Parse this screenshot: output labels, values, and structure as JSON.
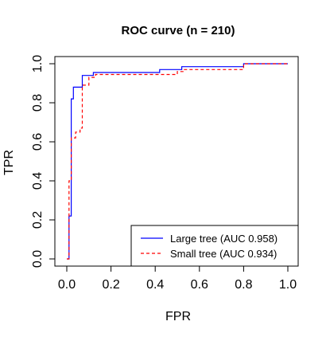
{
  "chart_data": {
    "type": "line",
    "title": "ROC curve (n = 210)",
    "xlabel": "FPR",
    "ylabel": "TPR",
    "xlim": [
      0,
      1
    ],
    "ylim": [
      0,
      1
    ],
    "x_ticks": [
      "0.0",
      "0.2",
      "0.4",
      "0.6",
      "0.8",
      "1.0"
    ],
    "y_ticks": [
      "0.0",
      "0.2",
      "0.4",
      "0.6",
      "0.8",
      "1.0"
    ],
    "grid": false,
    "legend_position": "bottom-right",
    "series": [
      {
        "name": "Large tree (AUC 0.958)",
        "color": "#0000ff",
        "line_style": "solid",
        "points": [
          [
            0.0,
            0.0
          ],
          [
            0.01,
            0.0
          ],
          [
            0.01,
            0.22
          ],
          [
            0.02,
            0.22
          ],
          [
            0.02,
            0.82
          ],
          [
            0.03,
            0.82
          ],
          [
            0.03,
            0.88
          ],
          [
            0.07,
            0.88
          ],
          [
            0.07,
            0.94
          ],
          [
            0.12,
            0.94
          ],
          [
            0.12,
            0.955
          ],
          [
            0.42,
            0.955
          ],
          [
            0.42,
            0.97
          ],
          [
            0.52,
            0.97
          ],
          [
            0.52,
            0.985
          ],
          [
            0.8,
            0.985
          ],
          [
            0.8,
            1.0
          ],
          [
            1.0,
            1.0
          ]
        ]
      },
      {
        "name": "Small tree (AUC 0.934)",
        "color": "#ff0000",
        "line_style": "dashed",
        "points": [
          [
            0.0,
            0.0
          ],
          [
            0.01,
            0.0
          ],
          [
            0.01,
            0.4
          ],
          [
            0.02,
            0.4
          ],
          [
            0.02,
            0.62
          ],
          [
            0.04,
            0.62
          ],
          [
            0.04,
            0.65
          ],
          [
            0.06,
            0.65
          ],
          [
            0.06,
            0.67
          ],
          [
            0.07,
            0.67
          ],
          [
            0.07,
            0.89
          ],
          [
            0.1,
            0.89
          ],
          [
            0.1,
            0.93
          ],
          [
            0.13,
            0.93
          ],
          [
            0.13,
            0.945
          ],
          [
            0.5,
            0.945
          ],
          [
            0.5,
            0.96
          ],
          [
            0.53,
            0.96
          ],
          [
            0.53,
            0.97
          ],
          [
            0.8,
            0.97
          ],
          [
            0.8,
            1.0
          ],
          [
            1.0,
            1.0
          ]
        ]
      }
    ]
  }
}
